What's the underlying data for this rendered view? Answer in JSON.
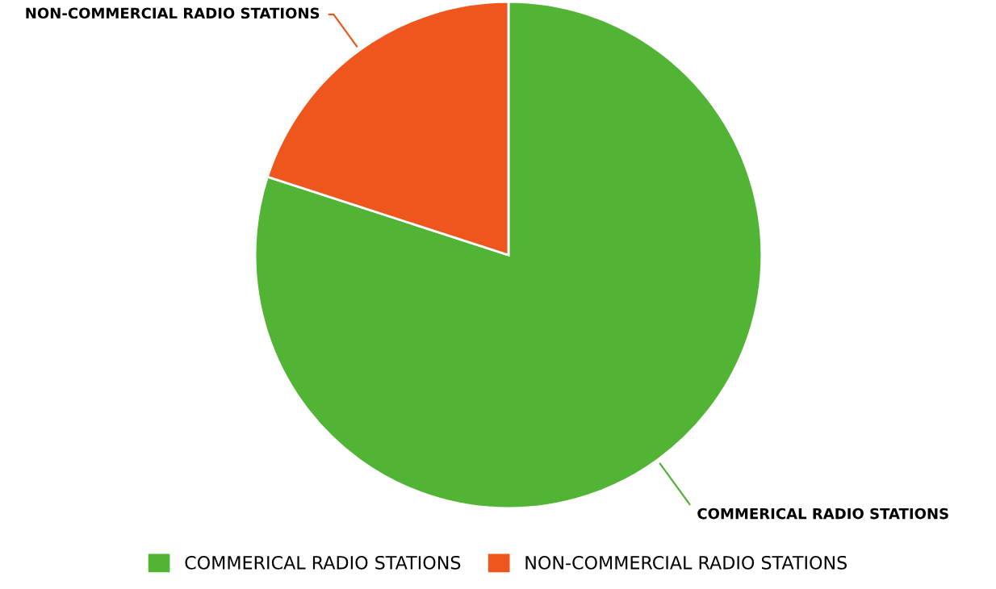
{
  "chart_data": {
    "type": "pie",
    "categories": [
      "COMMERICAL RADIO STATIONS",
      "NON-COMMERCIAL RADIO STATIONS"
    ],
    "values": [
      80,
      20
    ],
    "colors": [
      "#52b435",
      "#ef561d"
    ],
    "legend": "bottom"
  }
}
